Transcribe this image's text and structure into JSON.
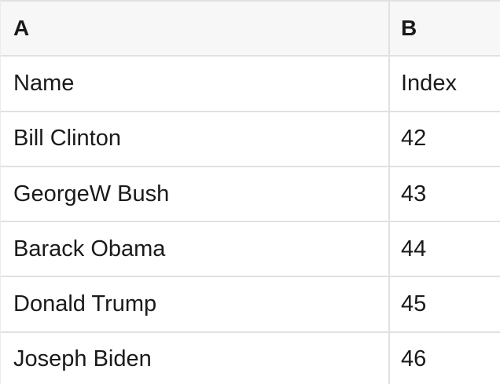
{
  "table": {
    "columns": [
      {
        "label": "A"
      },
      {
        "label": "B"
      }
    ],
    "rows": [
      {
        "name": "Name",
        "index": "Index"
      },
      {
        "name": "Bill Clinton",
        "index": "42"
      },
      {
        "name": "GeorgeW Bush",
        "index": "43"
      },
      {
        "name": "Barack Obama",
        "index": "44"
      },
      {
        "name": "Donald Trump",
        "index": "45"
      },
      {
        "name": "Joseph Biden",
        "index": "46"
      }
    ],
    "colors": {
      "header_bg": "#f7f7f7",
      "row_bg": "#ffffff",
      "border": "#e1e1e1",
      "text": "#1a1a1a"
    }
  }
}
